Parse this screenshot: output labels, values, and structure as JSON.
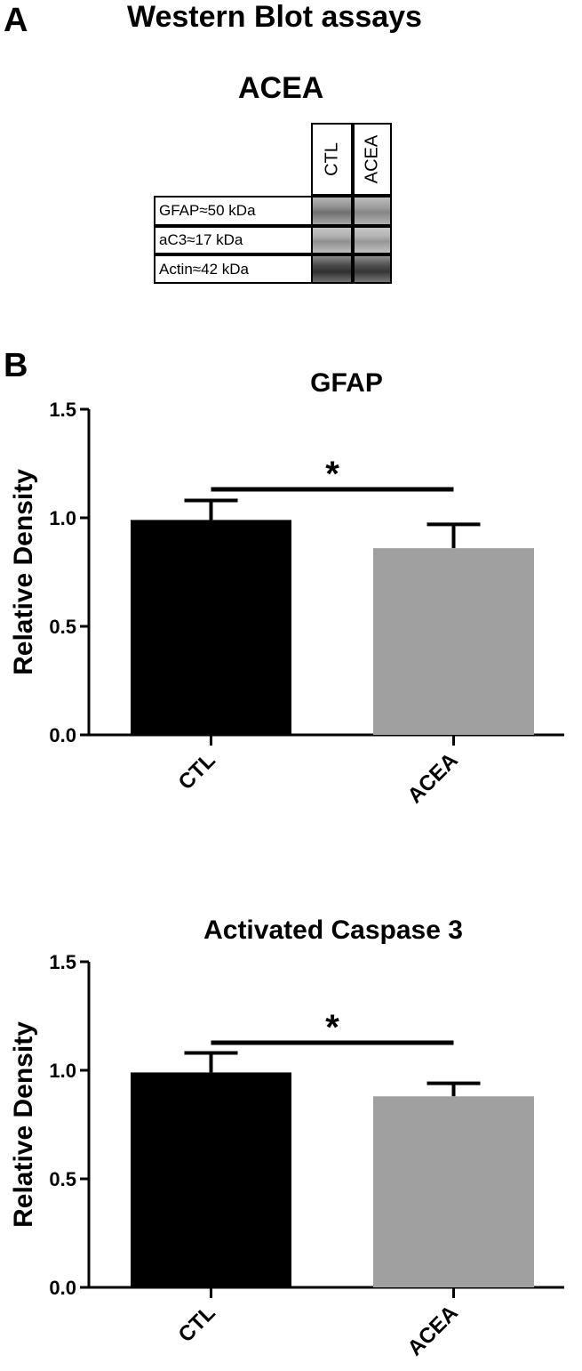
{
  "panel_a": {
    "letter": "A",
    "title": "Western Blot assays",
    "blot_title": "ACEA",
    "lanes": [
      "CTL",
      "ACEA"
    ],
    "rows": [
      "GFAP≈50 kDa",
      "aC3≈17 kDa",
      "Actin≈42 kDa"
    ]
  },
  "panel_b": {
    "letter": "B"
  },
  "chart_data": [
    {
      "type": "bar",
      "title": "GFAP",
      "ylabel": "Relative Density",
      "xlabel": "",
      "categories": [
        "CTL",
        "ACEA"
      ],
      "values": [
        0.99,
        0.86
      ],
      "errors": [
        0.09,
        0.11
      ],
      "bar_colors": [
        "#000000",
        "#a0a0a1"
      ],
      "ylim": [
        0,
        1.5
      ],
      "yticks": [
        "0.0",
        "0.5",
        "1.0",
        "1.5"
      ],
      "significance": "*",
      "grid": false
    },
    {
      "type": "bar",
      "title": "Activated  Caspase 3",
      "ylabel": "Relative Density",
      "xlabel": "",
      "categories": [
        "CTL",
        "ACEA"
      ],
      "values": [
        0.99,
        0.88
      ],
      "errors": [
        0.09,
        0.06
      ],
      "bar_colors": [
        "#000000",
        "#a0a0a1"
      ],
      "ylim": [
        0,
        1.5
      ],
      "yticks": [
        "0.0",
        "0.5",
        "1.0",
        "1.5"
      ],
      "significance": "*",
      "grid": false
    }
  ]
}
